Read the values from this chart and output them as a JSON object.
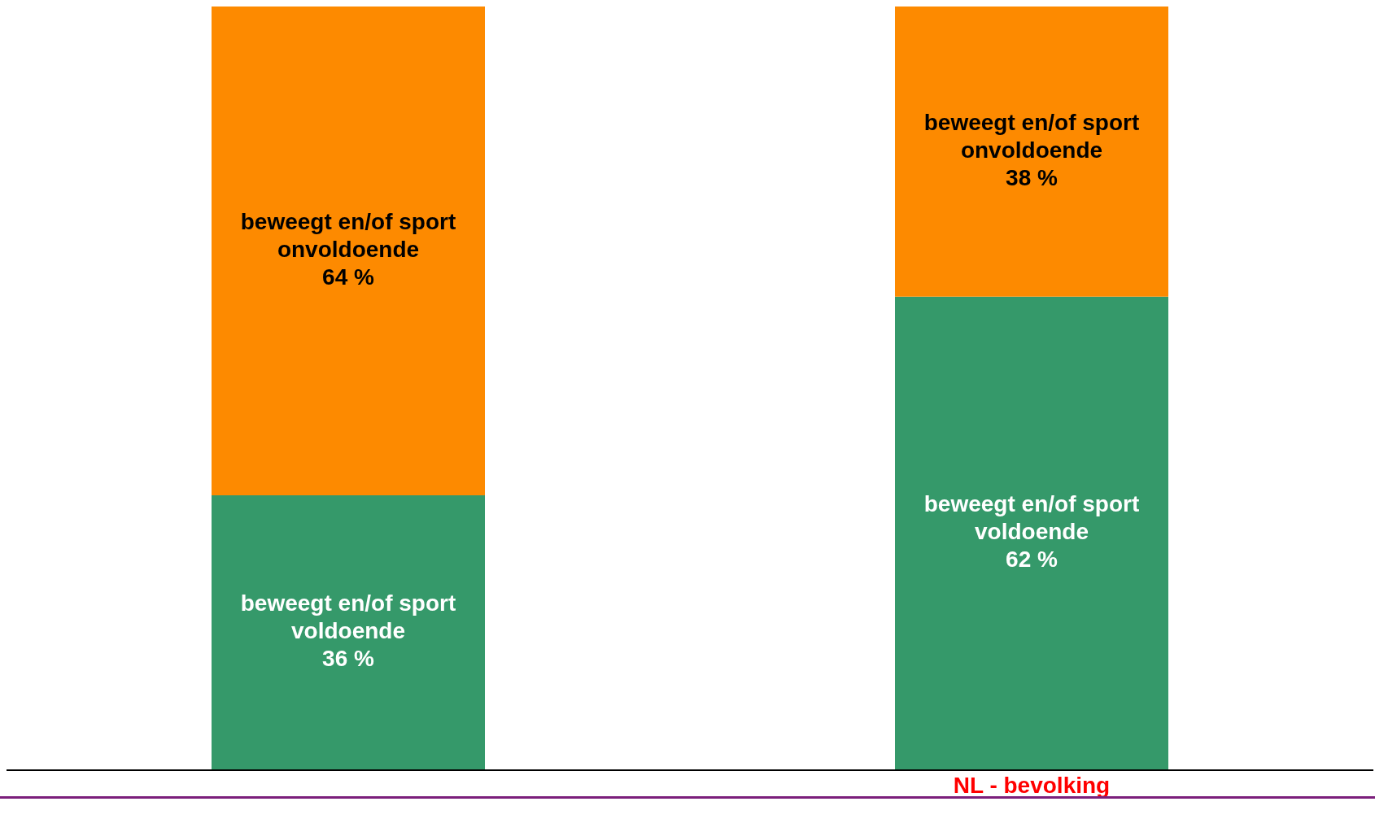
{
  "chart_data": {
    "type": "bar",
    "stacked": true,
    "categories": [
      null,
      "NL - bevolking"
    ],
    "ylim": [
      0,
      100
    ],
    "tick_labels": "x",
    "grid": false,
    "legend": false,
    "series": [
      {
        "name": "beweegt en/of sport voldoende",
        "color": "#35996a",
        "values": [
          36,
          62
        ],
        "value_labels": [
          "36 %",
          "62 %"
        ]
      },
      {
        "name": "beweegt en/of sport onvoldoende",
        "color": "#fd8a00",
        "values": [
          64,
          38
        ],
        "value_labels": [
          "64 %",
          "38 %"
        ]
      }
    ]
  }
}
